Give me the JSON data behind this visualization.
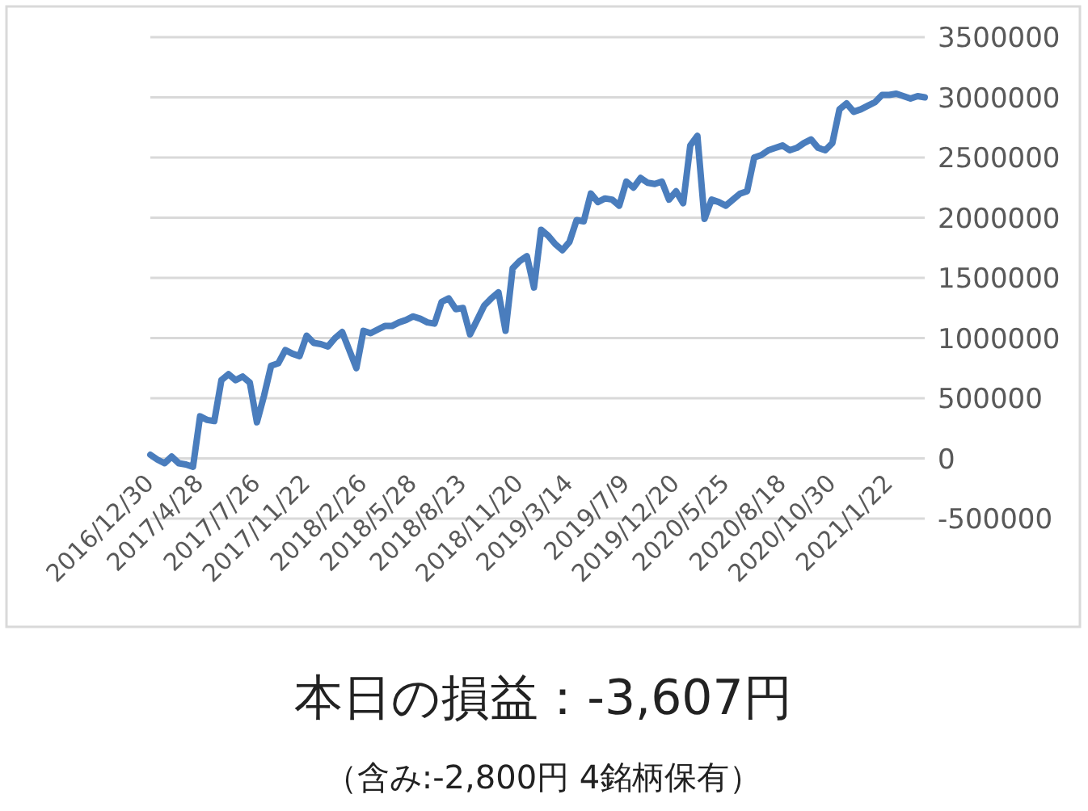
{
  "chart_data": {
    "type": "line",
    "categories": [
      "2016/12/30",
      null,
      null,
      null,
      null,
      null,
      null,
      "2017/4/28",
      null,
      null,
      null,
      null,
      null,
      null,
      null,
      "2017/7/26",
      null,
      null,
      null,
      null,
      null,
      null,
      "2017/11/22",
      null,
      null,
      null,
      null,
      null,
      null,
      null,
      "2018/2/26",
      null,
      null,
      null,
      null,
      null,
      null,
      "2018/5/28",
      null,
      null,
      null,
      null,
      null,
      null,
      "2018/8/23",
      null,
      null,
      null,
      null,
      null,
      null,
      null,
      "2018/11/20",
      null,
      null,
      null,
      null,
      null,
      null,
      "2019/3/14",
      null,
      null,
      null,
      null,
      null,
      null,
      null,
      "2019/7/9",
      null,
      null,
      null,
      null,
      null,
      null,
      "2019/12/20",
      null,
      null,
      null,
      null,
      null,
      null,
      "2020/5/25",
      null,
      null,
      null,
      null,
      null,
      null,
      null,
      "2020/8/18",
      null,
      null,
      null,
      null,
      null,
      null,
      "2020/10/30",
      null,
      null,
      null,
      null,
      null,
      null,
      null,
      "2021/1/22",
      null,
      null,
      null,
      null,
      null
    ],
    "values": [
      30000,
      -10000,
      -40000,
      15000,
      -40000,
      -50000,
      -70000,
      350000,
      320000,
      310000,
      650000,
      700000,
      650000,
      680000,
      630000,
      300000,
      520000,
      770000,
      790000,
      900000,
      870000,
      850000,
      1020000,
      960000,
      950000,
      930000,
      1000000,
      1050000,
      900000,
      750000,
      1060000,
      1040000,
      1070000,
      1100000,
      1100000,
      1130000,
      1150000,
      1180000,
      1160000,
      1130000,
      1120000,
      1300000,
      1330000,
      1240000,
      1250000,
      1030000,
      1150000,
      1270000,
      1330000,
      1380000,
      1060000,
      1580000,
      1640000,
      1680000,
      1420000,
      1900000,
      1850000,
      1780000,
      1730000,
      1800000,
      1980000,
      1970000,
      2200000,
      2130000,
      2160000,
      2150000,
      2100000,
      2300000,
      2250000,
      2330000,
      2290000,
      2280000,
      2300000,
      2150000,
      2220000,
      2120000,
      2600000,
      2680000,
      1990000,
      2150000,
      2130000,
      2100000,
      2150000,
      2200000,
      2220000,
      2500000,
      2520000,
      2560000,
      2580000,
      2600000,
      2560000,
      2580000,
      2620000,
      2650000,
      2580000,
      2560000,
      2620000,
      2900000,
      2950000,
      2880000,
      2900000,
      2930000,
      2960000,
      3020000,
      3020000,
      3030000,
      3010000,
      2990000,
      3010000,
      3000000
    ],
    "color": "#4a7dbd",
    "ylim": [
      -500000,
      3500000
    ],
    "yticks": [
      -500000,
      0,
      500000,
      1000000,
      1500000,
      2000000,
      2500000,
      3000000,
      3500000
    ],
    "grid": "y",
    "annotations": [
      "本日の損益：-3,607円",
      "（含み:-2,800円  4銘柄保有）"
    ]
  }
}
